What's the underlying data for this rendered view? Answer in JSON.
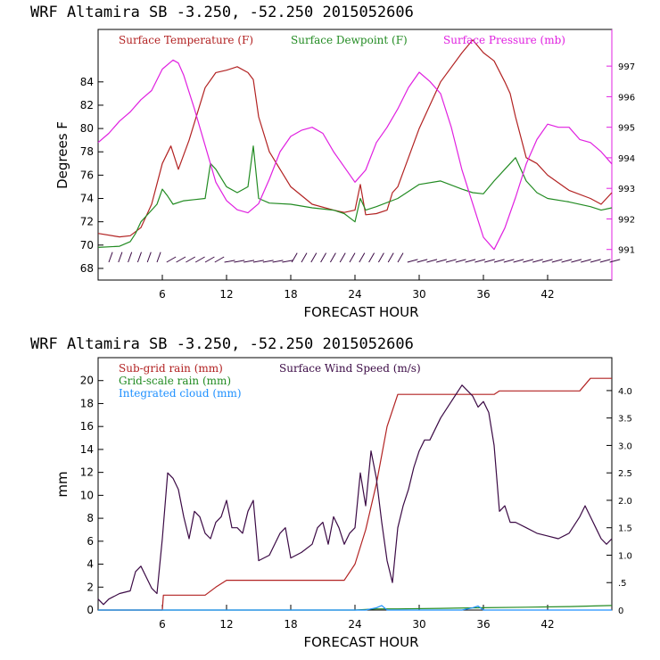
{
  "chart_data": [
    {
      "type": "line",
      "title": "WRF   Altamira  SB  -3.250, -52.250  2015052606",
      "xlabel": "FORECAST HOUR",
      "ylabel": "Degrees F",
      "xlim": [
        0,
        48
      ],
      "ylim": [
        67,
        88.5
      ],
      "y2lim": [
        990.0,
        998.2
      ],
      "x_ticks": [
        6,
        12,
        18,
        24,
        30,
        36,
        42
      ],
      "y_ticks": [
        68,
        70,
        72,
        74,
        76,
        78,
        80,
        82,
        84
      ],
      "y2_ticks": [
        991,
        992,
        993,
        994,
        995,
        996,
        997
      ],
      "grid": false,
      "legend_position": "top",
      "series": [
        {
          "name": "Surface Temperature (F)",
          "color": "#b22222",
          "axis": "left",
          "x": [
            0,
            2,
            3,
            4,
            5,
            6,
            6.8,
            7.5,
            8.5,
            10,
            11,
            12,
            13,
            14,
            14.5,
            15,
            16,
            18,
            20,
            22,
            23,
            24,
            24.5,
            25,
            26,
            27,
            27.5,
            28,
            30,
            32,
            34,
            35,
            36,
            37,
            38,
            38.5,
            39,
            40,
            41,
            42,
            44,
            46,
            47,
            48
          ],
          "y": [
            71,
            70.7,
            70.8,
            71.5,
            73.5,
            77,
            78.5,
            76.5,
            79,
            83.5,
            84.8,
            85,
            85.3,
            84.8,
            84.2,
            81,
            78,
            75,
            73.5,
            73,
            72.8,
            73,
            75.2,
            72.6,
            72.7,
            73,
            74.5,
            75,
            80,
            84,
            86.5,
            87.6,
            86.5,
            85.8,
            84,
            83,
            81,
            77.5,
            77,
            76,
            74.7,
            74,
            73.5,
            74.5
          ]
        },
        {
          "name": "Surface Dewpoint (F)",
          "color": "#228b22",
          "axis": "left",
          "x": [
            0,
            2,
            3,
            3.5,
            4,
            5,
            5.5,
            6,
            6.5,
            7,
            8,
            9,
            10,
            10.5,
            11,
            12,
            13,
            14,
            14.5,
            15,
            16,
            18,
            20,
            22,
            23,
            24,
            24.5,
            25,
            26,
            28,
            30,
            32,
            34,
            35,
            36,
            37,
            38,
            39,
            40,
            41,
            42,
            44,
            46,
            47,
            48
          ],
          "y": [
            69.8,
            69.9,
            70.3,
            71,
            72,
            73,
            73.5,
            74.8,
            74.2,
            73.5,
            73.8,
            73.9,
            74,
            77,
            76.5,
            75,
            74.5,
            75,
            78.5,
            74,
            73.6,
            73.5,
            73.2,
            73,
            72.7,
            72,
            74,
            73,
            73.3,
            74,
            75.2,
            75.5,
            74.8,
            74.5,
            74.4,
            75.5,
            76.5,
            77.5,
            75.5,
            74.5,
            74,
            73.7,
            73.3,
            73,
            73.2
          ]
        },
        {
          "name": "Surface Pressure (mb)",
          "color": "#e020e0",
          "axis": "right",
          "x": [
            0,
            1,
            2,
            3,
            4,
            5,
            6,
            7,
            7.5,
            8,
            9,
            10,
            11,
            12,
            13,
            14,
            15,
            16,
            17,
            18,
            19,
            20,
            21,
            22,
            23,
            24,
            25,
            26,
            27,
            28,
            29,
            30,
            31,
            32,
            33,
            34,
            35,
            36,
            37,
            38,
            39,
            40,
            41,
            42,
            43,
            44,
            45,
            46,
            47,
            48
          ],
          "y": [
            994.5,
            994.8,
            995.2,
            995.5,
            995.9,
            996.2,
            996.9,
            997.2,
            997.1,
            996.7,
            995.6,
            994.4,
            993.2,
            992.6,
            992.3,
            992.2,
            992.5,
            993.3,
            994.2,
            994.7,
            994.9,
            995.0,
            994.8,
            994.2,
            993.7,
            993.2,
            993.6,
            994.5,
            995.0,
            995.6,
            996.3,
            996.8,
            996.5,
            996.1,
            995.0,
            993.6,
            992.5,
            991.4,
            991.0,
            991.7,
            992.7,
            993.8,
            994.6,
            995.1,
            995.0,
            995.0,
            994.6,
            994.5,
            994.2,
            993.8
          ]
        }
      ],
      "wind_barbs_label": ""
    },
    {
      "type": "line",
      "title": "WRF   Altamira  SB  -3.250, -52.250  2015052606",
      "xlabel": "FORECAST HOUR",
      "ylabel": "mm",
      "xlim": [
        0,
        48
      ],
      "ylim": [
        0,
        22
      ],
      "y2lim": [
        0,
        4.6
      ],
      "x_ticks": [
        6,
        12,
        18,
        24,
        30,
        36,
        42
      ],
      "y_ticks": [
        0,
        2,
        4,
        6,
        8,
        10,
        12,
        14,
        16,
        18,
        20
      ],
      "y2_ticks": [
        "0",
        ".5",
        "1.0",
        "1.5",
        "2.0",
        "2.5",
        "3.0",
        "3.5",
        "4.0"
      ],
      "grid": false,
      "legend_position": "top-left",
      "series": [
        {
          "name": "Sub-grid rain (mm)",
          "color": "#b22222",
          "axis": "left",
          "x": [
            0,
            6,
            6.1,
            10,
            11,
            12,
            22,
            23,
            24,
            25,
            26,
            27,
            28,
            34,
            34.5,
            37,
            37.5,
            45,
            46,
            48
          ],
          "y": [
            0,
            0,
            1.3,
            1.3,
            2,
            2.6,
            2.6,
            2.6,
            4,
            7,
            11,
            16,
            18.8,
            18.8,
            18.8,
            18.8,
            19.1,
            19.1,
            20.2,
            20.2
          ]
        },
        {
          "name": "Grid-scale rain (mm)",
          "color": "#228b22",
          "axis": "left",
          "x": [
            0,
            24,
            26,
            28,
            32,
            36,
            40,
            44,
            46,
            48
          ],
          "y": [
            0,
            0,
            0.1,
            0.1,
            0.15,
            0.2,
            0.25,
            0.3,
            0.35,
            0.4
          ]
        },
        {
          "name": "Integrated cloud (mm)",
          "color": "#1e90ff",
          "axis": "left",
          "x": [
            0,
            25,
            26,
            26.5,
            27,
            34,
            35,
            35.5,
            36,
            48
          ],
          "y": [
            0,
            0,
            0.2,
            0.4,
            0,
            0,
            0.2,
            0.35,
            0,
            0
          ]
        },
        {
          "name": "Surface Wind Speed (m/s)",
          "color": "#3b0a45",
          "axis": "right",
          "x": [
            0,
            0.5,
            1,
            2,
            3,
            3.5,
            4,
            4.5,
            5,
            5.5,
            6,
            6.5,
            7,
            7.5,
            8,
            8.5,
            9,
            9.5,
            10,
            10.5,
            11,
            11.5,
            12,
            12.5,
            13,
            13.5,
            14,
            14.5,
            15,
            16,
            17,
            17.5,
            18,
            19,
            20,
            20.5,
            21,
            21.5,
            22,
            22.5,
            23,
            23.5,
            24,
            24.5,
            25,
            25.5,
            26,
            26.5,
            27,
            27.5,
            28,
            28.5,
            29,
            29.5,
            30,
            30.5,
            31,
            32,
            33,
            34,
            35,
            35.5,
            36,
            36.5,
            37,
            37.5,
            38,
            38.5,
            39,
            40,
            41,
            42,
            43,
            44,
            45,
            45.5,
            46,
            46.5,
            47,
            47.5,
            48
          ],
          "y": [
            0.2,
            0.1,
            0.2,
            0.3,
            0.35,
            0.7,
            0.8,
            0.6,
            0.4,
            0.3,
            1.3,
            2.5,
            2.4,
            2.2,
            1.7,
            1.3,
            1.8,
            1.7,
            1.4,
            1.3,
            1.6,
            1.7,
            2.0,
            1.5,
            1.5,
            1.4,
            1.8,
            2.0,
            0.9,
            1.0,
            1.4,
            1.5,
            0.95,
            1.05,
            1.2,
            1.5,
            1.6,
            1.2,
            1.7,
            1.5,
            1.2,
            1.4,
            1.5,
            2.5,
            1.9,
            2.9,
            2.4,
            1.6,
            0.9,
            0.5,
            1.5,
            1.9,
            2.2,
            2.6,
            2.9,
            3.1,
            3.1,
            3.5,
            3.8,
            4.1,
            3.9,
            3.7,
            3.8,
            3.6,
            3.0,
            1.8,
            1.9,
            1.6,
            1.6,
            1.5,
            1.4,
            1.35,
            1.3,
            1.4,
            1.7,
            1.9,
            1.7,
            1.5,
            1.3,
            1.2,
            1.3
          ]
        }
      ]
    }
  ]
}
